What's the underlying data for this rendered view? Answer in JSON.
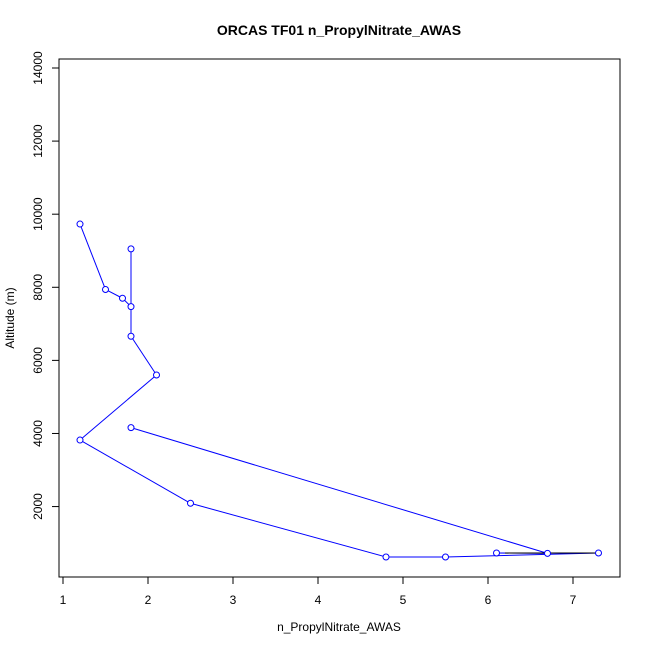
{
  "chart_data": {
    "type": "line",
    "title": "ORCAS TF01 n_PropylNitrate_AWAS",
    "xlabel": "n_PropylNitrate_AWAS",
    "ylabel": "Altitude (m)",
    "xlim": [
      1,
      7.3
    ],
    "ylim": [
      620,
      14000
    ],
    "xticks": [
      1,
      2,
      3,
      4,
      5,
      6,
      7
    ],
    "yticks": [
      2000,
      4000,
      6000,
      8000,
      10000,
      12000,
      14000
    ],
    "grid": false,
    "legend": "none",
    "line_color": "#0000ff",
    "marker_color": "#0000ff",
    "segment_color": "#000000",
    "series": [
      {
        "points": [
          {
            "x": 1.2,
            "y": 9730
          },
          {
            "x": 1.5,
            "y": 7940
          },
          {
            "x": 1.7,
            "y": 7700
          },
          {
            "x": 1.8,
            "y": 7470
          },
          {
            "x": 1.8,
            "y": 9050
          },
          {
            "x": 1.8,
            "y": 6660
          },
          {
            "x": 2.1,
            "y": 5600
          },
          {
            "x": 1.2,
            "y": 3820
          },
          {
            "x": 2.5,
            "y": 2090
          },
          {
            "x": 4.8,
            "y": 620
          },
          {
            "x": 5.5,
            "y": 620
          },
          {
            "x": 7.3,
            "y": 730
          },
          {
            "x": 6.1,
            "y": 730
          },
          {
            "x": 6.7,
            "y": 720
          },
          {
            "x": 1.8,
            "y": 4160
          }
        ]
      }
    ]
  }
}
